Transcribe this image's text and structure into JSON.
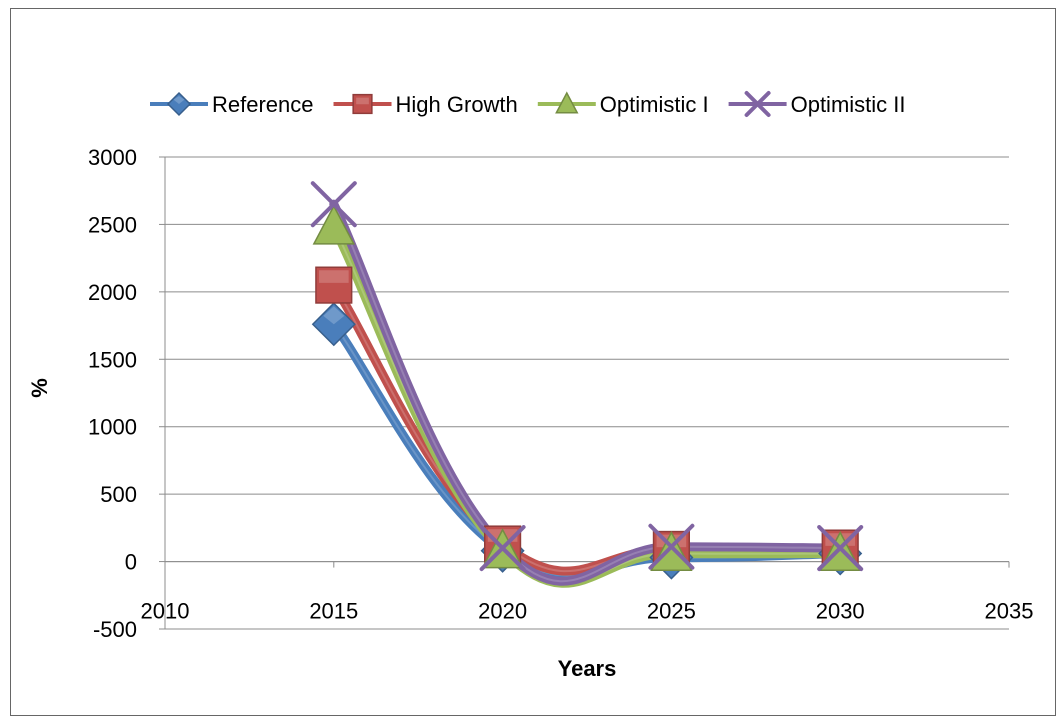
{
  "chart_data": {
    "type": "line",
    "title": "",
    "xlabel": "Years",
    "ylabel": "%",
    "xlim": [
      2010,
      2035
    ],
    "ylim": [
      -500,
      3000
    ],
    "x_ticks": [
      2010,
      2015,
      2020,
      2025,
      2030,
      2035
    ],
    "y_ticks": [
      -500,
      0,
      500,
      1000,
      1500,
      2000,
      2500,
      3000
    ],
    "grid": true,
    "smooth": true,
    "legend_position": "top",
    "x": [
      2015,
      2020,
      2025,
      2030
    ],
    "series": [
      {
        "name": "Reference",
        "values": [
          1760,
          80,
          30,
          60
        ],
        "color": "#4a7ebb",
        "marker": "diamond"
      },
      {
        "name": "High Growth",
        "values": [
          2050,
          130,
          90,
          100
        ],
        "color": "#c0504d",
        "marker": "square"
      },
      {
        "name": "Optimistic I",
        "values": [
          2480,
          80,
          60,
          60
        ],
        "color": "#9bbb59",
        "marker": "triangle"
      },
      {
        "name": "Optimistic II",
        "values": [
          2650,
          100,
          110,
          100
        ],
        "color": "#8064a2",
        "marker": "x"
      }
    ]
  }
}
